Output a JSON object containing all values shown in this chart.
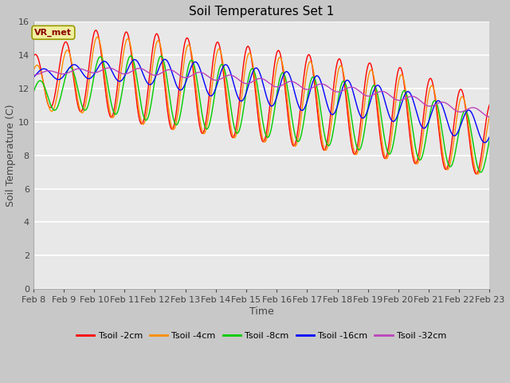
{
  "title": "Soil Temperatures Set 1",
  "xlabel": "Time",
  "ylabel": "Soil Temperature (C)",
  "ylim": [
    0,
    16
  ],
  "yticks": [
    0,
    2,
    4,
    6,
    8,
    10,
    12,
    14,
    16
  ],
  "x_labels": [
    "Feb 8",
    "Feb 9",
    "Feb 10",
    "Feb 11",
    "Feb 12",
    "Feb 13",
    "Feb 14",
    "Feb 15",
    "Feb 16",
    "Feb 17",
    "Feb 18",
    "Feb 19",
    "Feb 20",
    "Feb 21",
    "Feb 22",
    "Feb 23"
  ],
  "annotation_text": "VR_met",
  "colors": {
    "Tsoil -2cm": "#ff0000",
    "Tsoil -4cm": "#ff8c00",
    "Tsoil -8cm": "#00cc00",
    "Tsoil -16cm": "#0000ff",
    "Tsoil -32cm": "#bb44bb"
  },
  "fig_facecolor": "#c8c8c8",
  "ax_facecolor": "#e8e8e8",
  "grid_color": "#ffffff",
  "title_fontsize": 11,
  "axis_label_fontsize": 9,
  "tick_fontsize": 8
}
